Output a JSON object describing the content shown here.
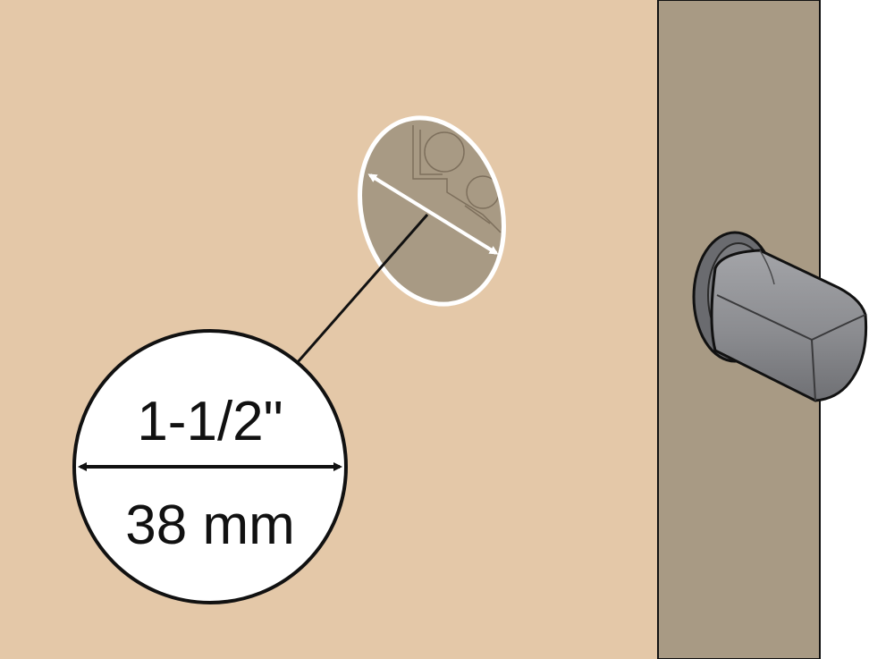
{
  "illustration": {
    "subject": "door-bore-hole-measurement",
    "colors": {
      "door_face": "#e4c8a8",
      "door_edge": "#a89a84",
      "background": "#ffffff",
      "hole": "#a89a84",
      "outline": "#111111",
      "knob": "#8e8f93"
    }
  },
  "dimension": {
    "imperial": "1-1/2\"",
    "metric": "38 mm"
  }
}
